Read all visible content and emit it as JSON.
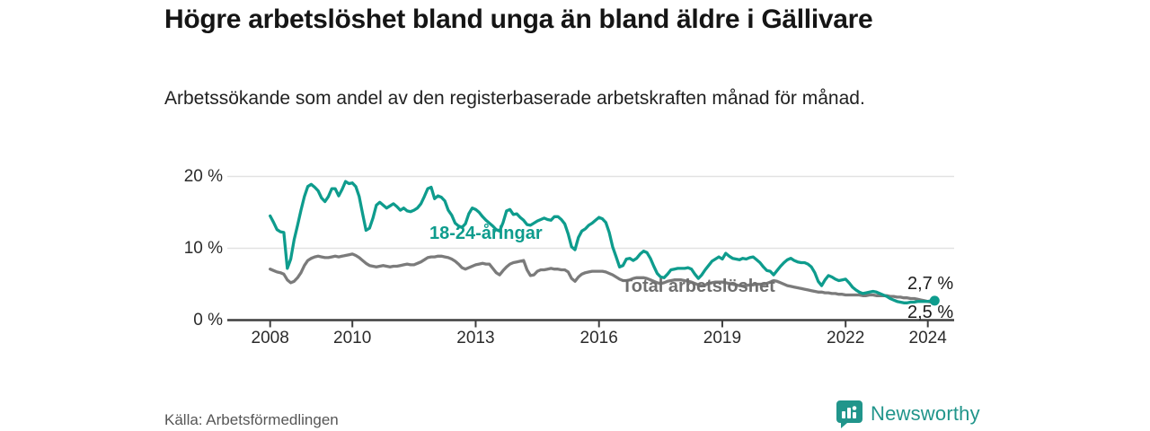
{
  "header": {
    "title": "Högre arbetslöshet bland unga än bland äldre i Gällivare",
    "subtitle": "Arbetssökande som andel av den registerbaserade arbetskraften månad för månad."
  },
  "footer": {
    "source": "Källa: Arbetsförmedlingen",
    "brand": "Newsworthy",
    "brand_color": "#21958B"
  },
  "chart_data": {
    "type": "line",
    "title": "Högre arbetslöshet bland unga än bland äldre i Gällivare",
    "x_unit": "month",
    "x_start": "2008-01",
    "x_end": "2024-03",
    "ylabel": "",
    "xlabel": "",
    "ylim": [
      0,
      21.5
    ],
    "grid": "horizontal",
    "y_ticks": [
      {
        "value": 0,
        "label": "0 %"
      },
      {
        "value": 10,
        "label": "10 %"
      },
      {
        "value": 20,
        "label": "20 %"
      }
    ],
    "x_ticks": [
      {
        "year": 2008,
        "label": "2008"
      },
      {
        "year": 2010,
        "label": "2010"
      },
      {
        "year": 2013,
        "label": "2013"
      },
      {
        "year": 2016,
        "label": "2016"
      },
      {
        "year": 2019,
        "label": "2019"
      },
      {
        "year": 2022,
        "label": "2022"
      },
      {
        "year": 2024,
        "label": "2024"
      }
    ],
    "series": [
      {
        "name": "18-24-åringar",
        "color": "#0E9C8D",
        "end_label": "2,7 %",
        "end_value": 2.7,
        "values": [
          14.5,
          13.6,
          12.6,
          12.3,
          12.2,
          7.2,
          8.5,
          11.2,
          13.2,
          15.3,
          17.2,
          18.6,
          18.9,
          18.5,
          18.0,
          17.0,
          16.5,
          17.2,
          18.3,
          18.3,
          17.3,
          18.2,
          19.3,
          19.0,
          19.1,
          18.6,
          17.2,
          14.8,
          12.5,
          12.8,
          14.2,
          16.0,
          16.4,
          16.0,
          15.6,
          15.9,
          16.2,
          15.8,
          15.3,
          15.6,
          15.2,
          15.1,
          15.3,
          15.6,
          16.2,
          17.2,
          18.3,
          18.5,
          16.9,
          17.3,
          17.1,
          16.6,
          15.3,
          14.6,
          13.5,
          13.1,
          12.9,
          13.4,
          14.8,
          15.6,
          15.4,
          15.0,
          14.4,
          13.9,
          13.5,
          13.1,
          12.6,
          12.4,
          13.6,
          15.2,
          15.4,
          14.7,
          14.8,
          14.3,
          13.9,
          13.3,
          13.2,
          13.5,
          13.8,
          14.0,
          14.2,
          14.0,
          13.9,
          14.4,
          14.4,
          14.0,
          13.4,
          12.0,
          10.2,
          9.8,
          11.5,
          12.4,
          12.7,
          13.2,
          13.5,
          13.9,
          14.3,
          14.1,
          13.6,
          12.2,
          10.2,
          8.8,
          7.4,
          7.6,
          8.5,
          8.6,
          8.3,
          8.6,
          9.2,
          9.6,
          9.4,
          8.6,
          7.5,
          6.5,
          6.0,
          5.9,
          6.4,
          7.0,
          7.1,
          7.2,
          7.2,
          7.2,
          7.3,
          7.1,
          6.4,
          5.8,
          6.3,
          7.0,
          7.6,
          8.2,
          8.5,
          8.8,
          8.5,
          9.3,
          8.9,
          8.6,
          8.5,
          8.4,
          8.6,
          8.5,
          8.7,
          8.8,
          8.4,
          8.0,
          7.4,
          6.9,
          6.8,
          6.3,
          6.9,
          7.5,
          8.0,
          8.4,
          8.6,
          8.3,
          8.1,
          8.0,
          8.0,
          7.8,
          7.4,
          6.6,
          5.4,
          4.8,
          5.6,
          6.2,
          6.0,
          5.7,
          5.5,
          5.6,
          5.7,
          5.2,
          4.6,
          4.2,
          3.9,
          3.7,
          3.8,
          3.9,
          4.0,
          3.9,
          3.7,
          3.5,
          3.3,
          3.0,
          2.8,
          2.6,
          2.5,
          2.4,
          2.4,
          2.5,
          2.5,
          2.6,
          2.6,
          2.6,
          2.6,
          2.7,
          2.7
        ]
      },
      {
        "name": "Total arbetslöshet",
        "color": "#7b7b7b",
        "end_label": "2,5 %",
        "end_value": 2.5,
        "values": [
          7.1,
          6.9,
          6.7,
          6.6,
          6.4,
          5.6,
          5.2,
          5.4,
          5.9,
          6.6,
          7.6,
          8.3,
          8.6,
          8.8,
          8.9,
          8.8,
          8.7,
          8.7,
          8.8,
          8.9,
          8.8,
          8.9,
          9.0,
          9.1,
          9.2,
          9.0,
          8.7,
          8.3,
          7.9,
          7.6,
          7.5,
          7.4,
          7.5,
          7.6,
          7.5,
          7.4,
          7.5,
          7.5,
          7.6,
          7.7,
          7.8,
          7.7,
          7.7,
          7.9,
          8.1,
          8.4,
          8.7,
          8.8,
          8.8,
          8.9,
          8.9,
          8.8,
          8.7,
          8.5,
          8.2,
          7.8,
          7.3,
          7.1,
          7.3,
          7.5,
          7.7,
          7.8,
          7.9,
          7.8,
          7.8,
          7.2,
          6.6,
          6.3,
          6.9,
          7.4,
          7.8,
          8.0,
          8.1,
          8.2,
          8.3,
          7.0,
          6.2,
          6.3,
          6.8,
          7.0,
          7.0,
          7.1,
          7.2,
          7.1,
          7.1,
          7.0,
          7.0,
          6.7,
          5.8,
          5.4,
          6.0,
          6.4,
          6.6,
          6.7,
          6.8,
          6.8,
          6.8,
          6.8,
          6.7,
          6.5,
          6.3,
          6.0,
          5.7,
          5.5,
          5.5,
          5.6,
          5.8,
          5.9,
          5.9,
          5.9,
          5.8,
          5.6,
          5.4,
          5.2,
          5.1,
          5.2,
          5.4,
          5.5,
          5.6,
          5.6,
          5.6,
          5.5,
          5.4,
          5.3,
          5.1,
          4.9,
          4.8,
          4.9,
          5.1,
          5.2,
          5.3,
          5.3,
          5.3,
          5.2,
          5.1,
          5.0,
          4.9,
          4.8,
          4.8,
          4.8,
          4.9,
          4.9,
          5.0,
          5.0,
          5.0,
          5.1,
          5.3,
          5.5,
          5.4,
          5.2,
          5.0,
          4.8,
          4.7,
          4.6,
          4.5,
          4.4,
          4.3,
          4.2,
          4.1,
          4.0,
          3.9,
          3.9,
          3.8,
          3.8,
          3.7,
          3.7,
          3.6,
          3.6,
          3.5,
          3.5,
          3.5,
          3.5,
          3.5,
          3.4,
          3.4,
          3.5,
          3.5,
          3.4,
          3.4,
          3.4,
          3.4,
          3.3,
          3.3,
          3.2,
          3.2,
          3.1,
          3.1,
          3.0,
          3.0,
          2.9,
          2.8,
          2.7,
          2.6,
          2.5,
          2.5
        ]
      }
    ],
    "legend_position": "inline-annotations",
    "axis_color": "#3f3f3f",
    "gridline_color": "#e2e2e2"
  }
}
